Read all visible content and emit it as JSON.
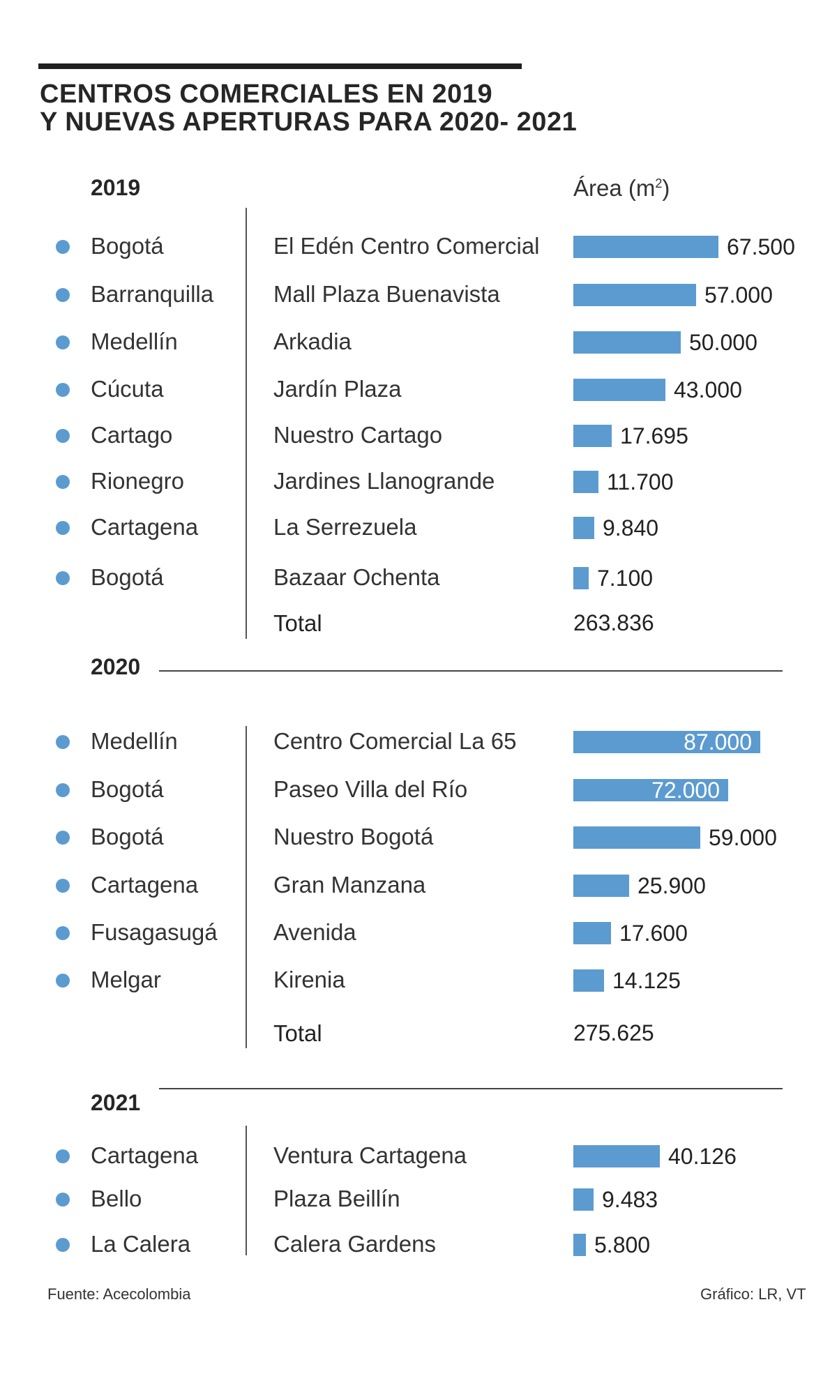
{
  "title": {
    "line1": "CENTROS COMERCIALES EN 2019",
    "line2": "Y NUEVAS APERTURAS PARA 2020- 2021"
  },
  "area_label": "Área (m",
  "area_label_sup": "2",
  "area_label_close": ")",
  "source": "Fuente: Acecolombia",
  "credit": "Gráfico: LR, VT",
  "total_label": "Total",
  "accent_color": "#5b9bd0",
  "chart_data": {
    "type": "bar",
    "orientation": "horizontal",
    "unit": "m²",
    "xlim": [
      0,
      87000
    ],
    "sections": [
      {
        "year": "2019",
        "rows": [
          {
            "city": "Bogotá",
            "mall": "El Edén Centro Comercial",
            "value": 67500,
            "label": "67.500"
          },
          {
            "city": "Barranquilla",
            "mall": "Mall Plaza Buenavista",
            "value": 57000,
            "label": "57.000"
          },
          {
            "city": "Medellín",
            "mall": "Arkadia",
            "value": 50000,
            "label": "50.000"
          },
          {
            "city": "Cúcuta",
            "mall": "Jardín Plaza",
            "value": 43000,
            "label": "43.000"
          },
          {
            "city": "Cartago",
            "mall": "Nuestro Cartago",
            "value": 17695,
            "label": "17.695"
          },
          {
            "city": "Rionegro",
            "mall": "Jardines Llanogrande",
            "value": 11700,
            "label": "11.700"
          },
          {
            "city": "Cartagena",
            "mall": "La Serrezuela",
            "value": 9840,
            "label": "9.840"
          },
          {
            "city": "Bogotá",
            "mall": "Bazaar Ochenta",
            "value": 7100,
            "label": "7.100"
          }
        ],
        "total": "263.836"
      },
      {
        "year": "2020",
        "rows": [
          {
            "city": "Medellín",
            "mall": "Centro Comercial La 65",
            "value": 87000,
            "label": "87.000"
          },
          {
            "city": "Bogotá",
            "mall": "Paseo Villa del Río",
            "value": 72000,
            "label": "72.000"
          },
          {
            "city": "Bogotá",
            "mall": "Nuestro Bogotá",
            "value": 59000,
            "label": "59.000"
          },
          {
            "city": "Cartagena",
            "mall": "Gran Manzana",
            "value": 25900,
            "label": "25.900"
          },
          {
            "city": "Fusagasugá",
            "mall": "Avenida",
            "value": 17600,
            "label": "17.600"
          },
          {
            "city": "Melgar",
            "mall": "Kirenia",
            "value": 14125,
            "label": "14.125"
          }
        ],
        "total": "275.625"
      },
      {
        "year": "2021",
        "rows": [
          {
            "city": "Cartagena",
            "mall": "Ventura Cartagena",
            "value": 40126,
            "label": "40.126"
          },
          {
            "city": "Bello",
            "mall": "Plaza Beillín",
            "value": 9483,
            "label": "9.483"
          },
          {
            "city": "La Calera",
            "mall": "Calera Gardens",
            "value": 5800,
            "label": "5.800"
          }
        ]
      }
    ]
  }
}
